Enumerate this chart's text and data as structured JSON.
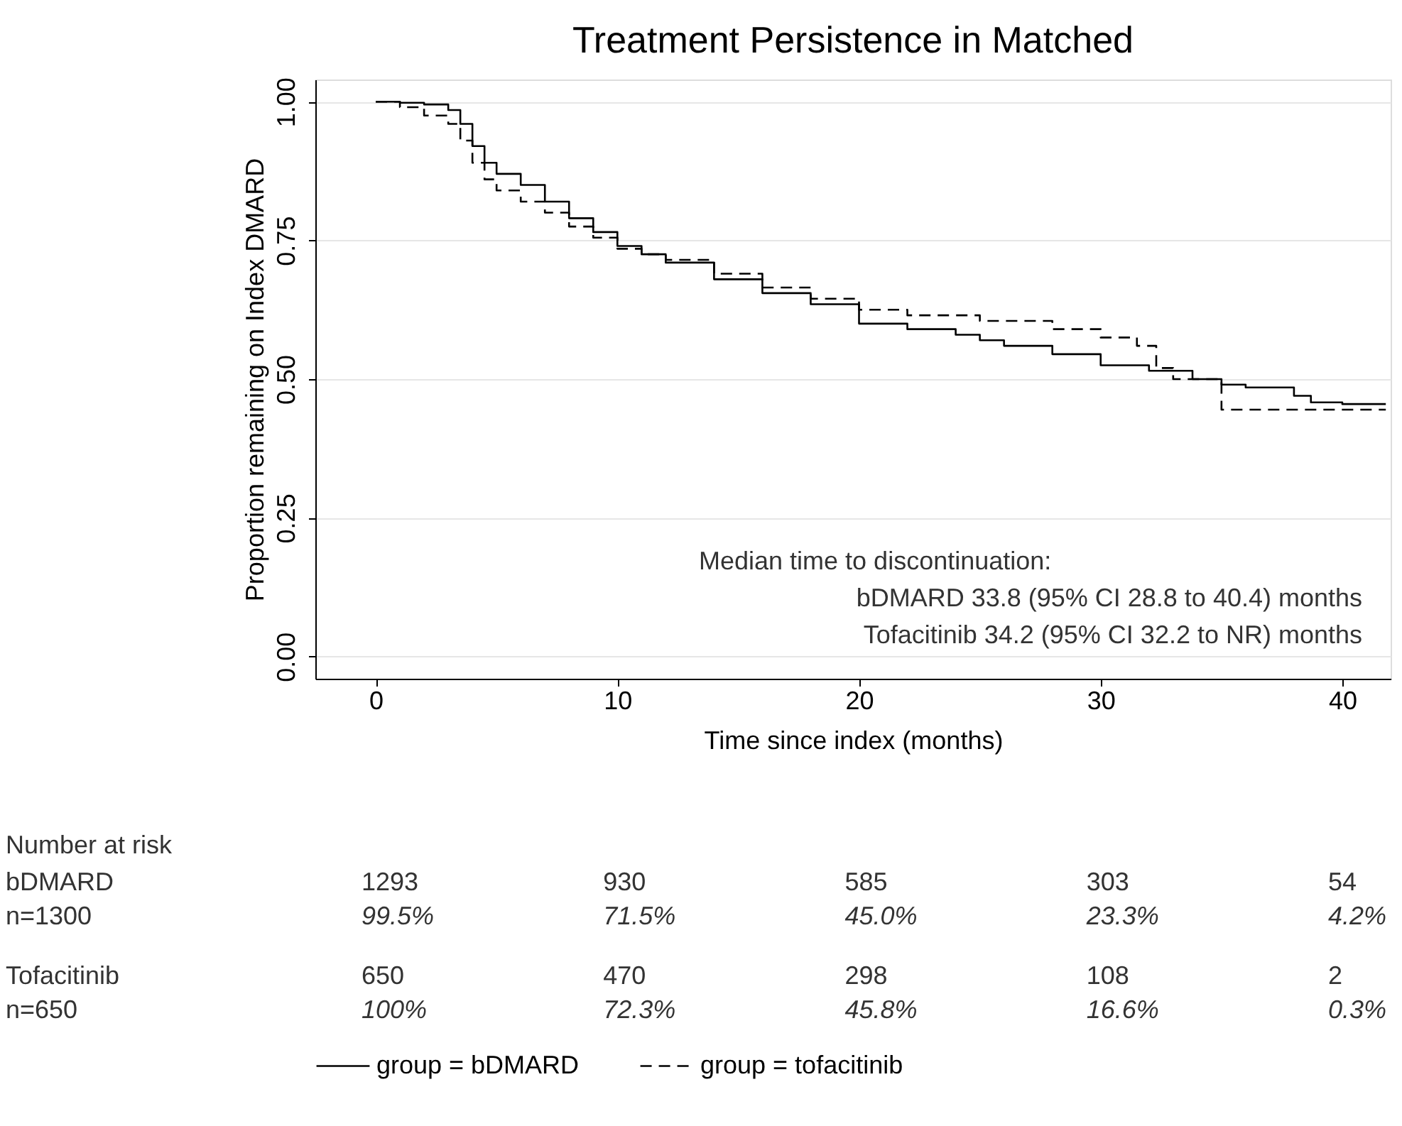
{
  "chart_data": {
    "type": "step",
    "title": "Treatment Persistence in Matched",
    "xlabel": "Time since index (months)",
    "ylabel": "Proportion remaining on Index DMARD",
    "xlim": [
      -2.5,
      42
    ],
    "xticks": [
      0,
      10,
      20,
      30,
      40
    ],
    "ylim": [
      -0.04,
      1.04
    ],
    "yticks": [
      {
        "value": 0,
        "label": "0.00"
      },
      {
        "value": 0.25,
        "label": "0.25"
      },
      {
        "value": 0.5,
        "label": "0.50"
      },
      {
        "value": 0.75,
        "label": "0.75"
      },
      {
        "value": 1,
        "label": "1.00"
      }
    ],
    "grid": "y",
    "legend": "bottom",
    "marker": "none",
    "series": [
      {
        "name": "group = bDMARD",
        "color": "#000000",
        "line_style": "solid",
        "x": [
          0,
          1,
          2,
          3,
          3.5,
          4,
          4.5,
          5,
          6,
          7,
          8,
          9,
          10,
          11,
          12,
          14,
          16,
          18,
          20,
          22,
          24,
          25,
          26,
          28,
          30,
          32,
          33.8,
          35,
          36,
          38,
          38.7,
          40,
          41.8
        ],
        "values": [
          1.0,
          0.998,
          0.995,
          0.985,
          0.96,
          0.92,
          0.89,
          0.87,
          0.85,
          0.82,
          0.79,
          0.765,
          0.74,
          0.725,
          0.71,
          0.68,
          0.655,
          0.635,
          0.6,
          0.59,
          0.58,
          0.57,
          0.56,
          0.545,
          0.525,
          0.515,
          0.5,
          0.49,
          0.485,
          0.47,
          0.458,
          0.455,
          0.455
        ]
      },
      {
        "name": "group = tofacitinib",
        "color": "#000000",
        "line_style": "dashed",
        "x": [
          0,
          1,
          2,
          3,
          3.5,
          4,
          4.5,
          5,
          6,
          7,
          8,
          9,
          10,
          11,
          12,
          14,
          16,
          18,
          20,
          22,
          25,
          28,
          30,
          31.5,
          32.3,
          33,
          34.2,
          35,
          38,
          41.8
        ],
        "values": [
          1.0,
          0.99,
          0.975,
          0.96,
          0.93,
          0.89,
          0.86,
          0.84,
          0.82,
          0.8,
          0.775,
          0.755,
          0.735,
          0.725,
          0.715,
          0.69,
          0.665,
          0.645,
          0.625,
          0.615,
          0.605,
          0.59,
          0.575,
          0.56,
          0.52,
          0.5,
          0.5,
          0.445,
          0.445,
          0.445
        ]
      }
    ],
    "annotations": [
      "Median time to discontinuation:",
      "bDMARD 33.8 (95% CI 28.8 to 40.4) months",
      "Tofacitinib 34.2 (95% CI 32.2 to NR) months",
      "Number at risk",
      "bDMARD",
      "1293",
      "930",
      "585",
      "303",
      "54",
      "n=1300",
      "99.5%",
      "71.5%",
      "45.0%",
      "23.3%",
      "4.2%",
      "Tofacitinib",
      "650",
      "470",
      "298",
      "108",
      "2",
      "n=650",
      "100%",
      "72.3%",
      "45.8%",
      "16.6%",
      "0.3%"
    ]
  }
}
